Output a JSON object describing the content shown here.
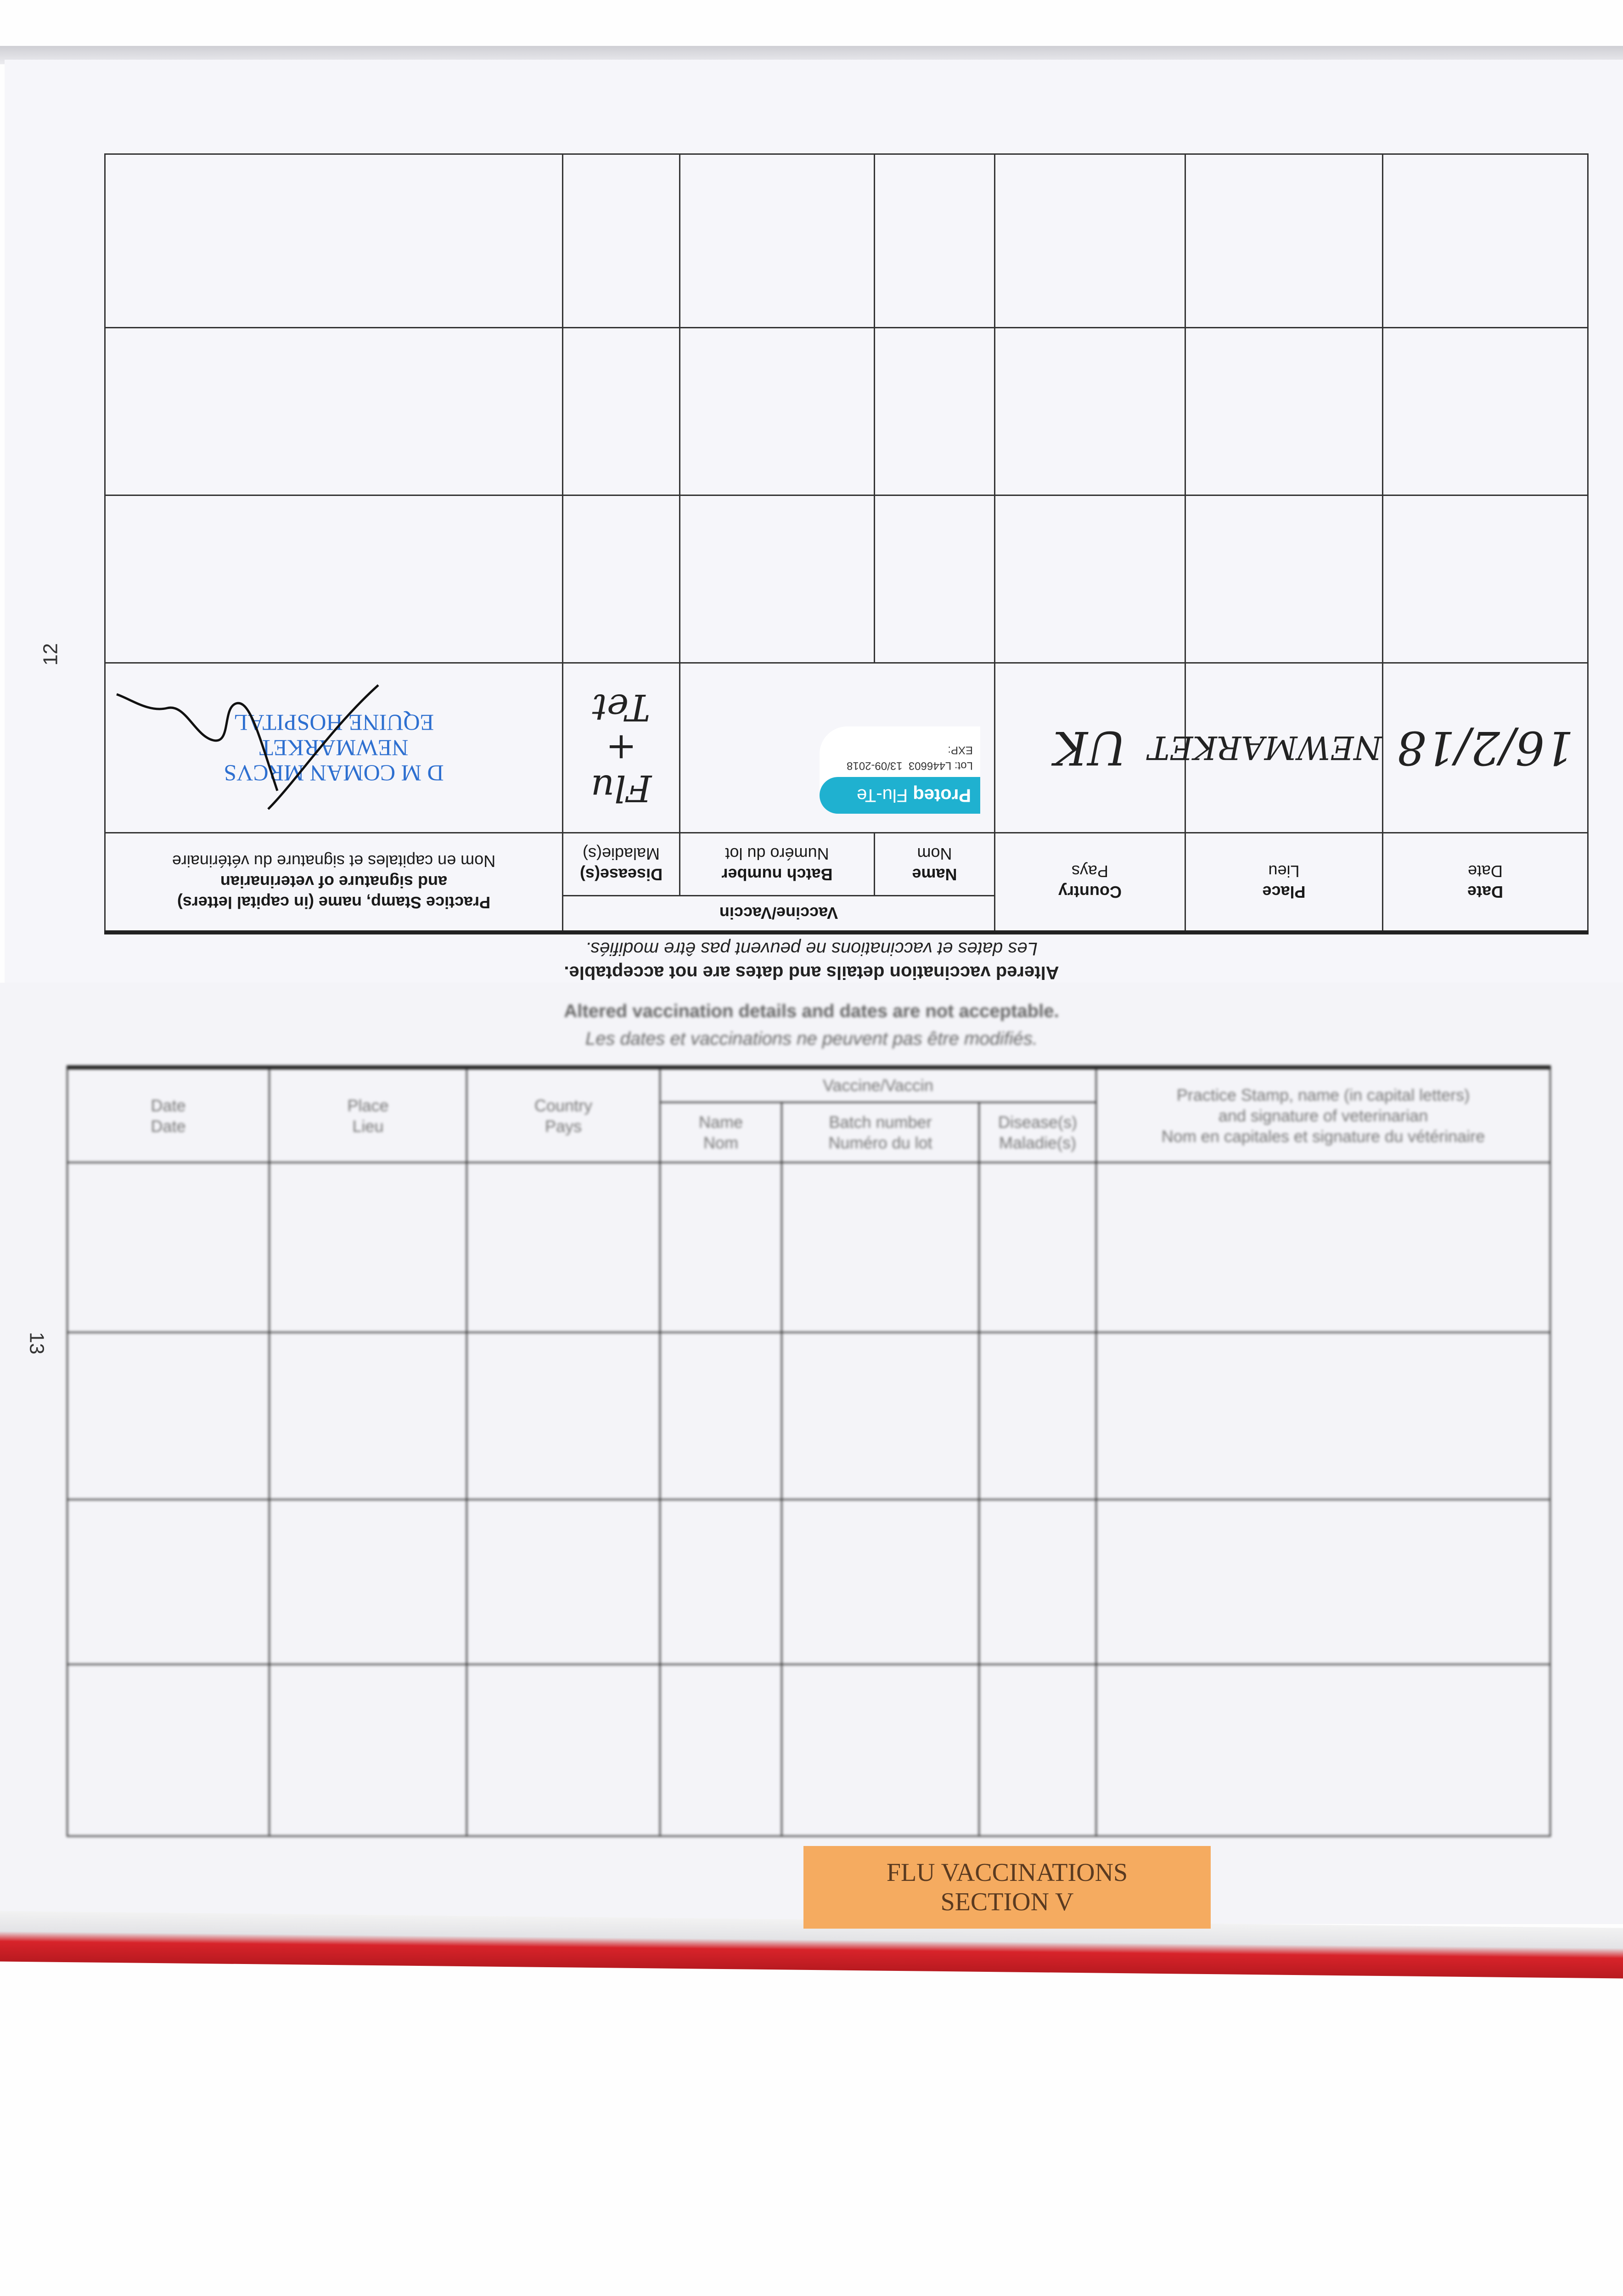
{
  "headers": {
    "date": "Date",
    "date_fr": "Date",
    "place": "Place",
    "place_fr": "Lieu",
    "country": "Country",
    "country_fr": "Pays",
    "vaccine": "Vaccine/Vaccin",
    "name": "Name",
    "name_fr": "Nom",
    "batch": "Batch number",
    "batch_fr": "Numéro du lot",
    "disease": "Disease(s)",
    "disease_fr": "Maladie(s)",
    "stamp_line1": "Practice Stamp, name (in capital letters)",
    "stamp_line2": "and signature of veterinarian",
    "stamp_fr": "Nom en capitales et signature du vétérinaire"
  },
  "captions": {
    "en": "Altered vaccination details and dates are not acceptable.",
    "fr": "Les dates et vaccinations ne peuvent pas être modifiés."
  },
  "page_12": {
    "page_number": "12",
    "entry": {
      "date": "16/2/18",
      "place": "NEWMARKET",
      "country": "UK",
      "vaccine_sticker": {
        "brand": "Proteq",
        "product": "Flu-Te",
        "lot_label": "Lot:",
        "lot": "L446603",
        "exp_label": "EXP:",
        "exp": "13/09-2018"
      },
      "disease": [
        "Flu",
        "+",
        "Tet"
      ],
      "stamp": [
        "D M COMAN MRCVS",
        "NEWMARKET",
        "EQUINE HOSPITAL"
      ]
    }
  },
  "page_13": {
    "page_number": "13",
    "section_label": [
      "FLU VACCINATIONS",
      "SECTION V"
    ]
  },
  "colors": {
    "stamp_ink": "#2d6fd0",
    "sticker": "#1fb1d0",
    "section_label": "#f5ab60",
    "cover_red": "#d8232a"
  }
}
